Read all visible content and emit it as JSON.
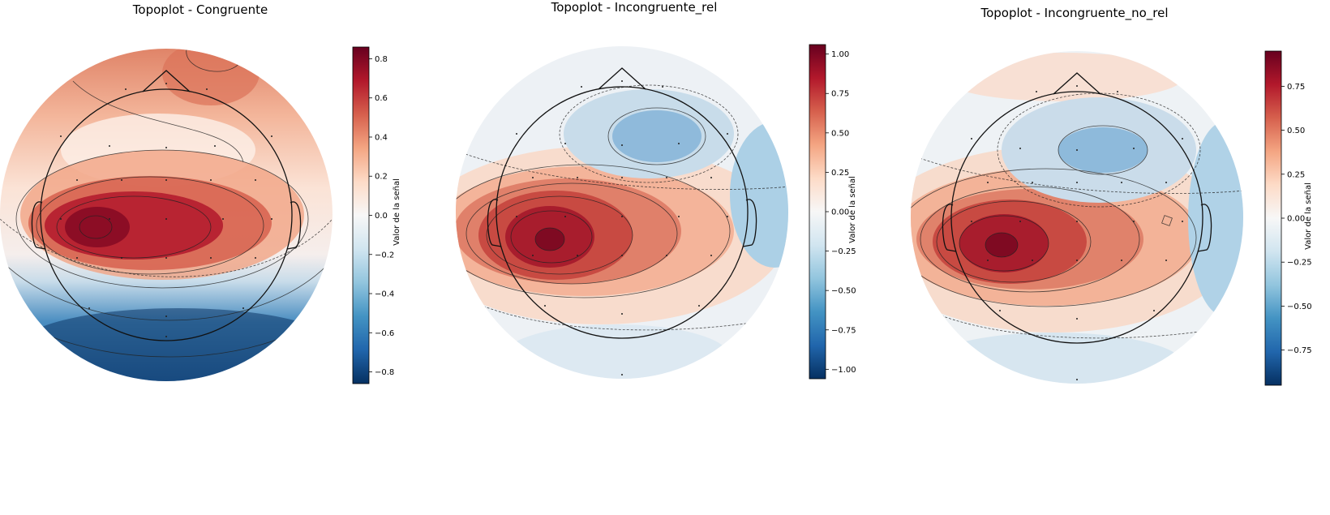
{
  "chart_data": [
    {
      "type": "heatmap",
      "title": "Topoplot - Congruente",
      "colorbar_label": "Valor de la señal",
      "colormap": "RdBu_r",
      "vlim": [
        -0.86,
        0.86
      ],
      "colorbar_ticks": [
        {
          "value": 0.8,
          "label": "0.8"
        },
        {
          "value": 0.6,
          "label": "0.6"
        },
        {
          "value": 0.4,
          "label": "0.4"
        },
        {
          "value": 0.2,
          "label": "0.2"
        },
        {
          "value": 0.0,
          "label": "0.0"
        },
        {
          "value": -0.2,
          "label": "−0.2"
        },
        {
          "value": -0.4,
          "label": "−0.4"
        },
        {
          "value": -0.6,
          "label": "−0.6"
        },
        {
          "value": -0.8,
          "label": "−0.8"
        }
      ],
      "min": -0.86,
      "max": 0.86
    },
    {
      "type": "heatmap",
      "title": "Topoplot - Incongruente_rel",
      "colorbar_label": "Valor de la señal",
      "colormap": "RdBu_r",
      "vlim": [
        -1.06,
        1.06
      ],
      "colorbar_ticks": [
        {
          "value": 1.0,
          "label": "1.00"
        },
        {
          "value": 0.75,
          "label": "0.75"
        },
        {
          "value": 0.5,
          "label": "0.50"
        },
        {
          "value": 0.25,
          "label": "0.25"
        },
        {
          "value": 0.0,
          "label": "0.00"
        },
        {
          "value": -0.25,
          "label": "−0.25"
        },
        {
          "value": -0.5,
          "label": "−0.50"
        },
        {
          "value": -0.75,
          "label": "−0.75"
        },
        {
          "value": -1.0,
          "label": "−1.00"
        }
      ],
      "min": -0.45,
      "max": 1.06
    },
    {
      "type": "heatmap",
      "title": "Topoplot - Incongruente_no_rel",
      "colorbar_label": "Valor de la señal",
      "colormap": "RdBu_r",
      "vlim": [
        -0.95,
        0.95
      ],
      "colorbar_ticks": [
        {
          "value": 0.75,
          "label": "0.75"
        },
        {
          "value": 0.5,
          "label": "0.50"
        },
        {
          "value": 0.25,
          "label": "0.25"
        },
        {
          "value": 0.0,
          "label": "0.00"
        },
        {
          "value": -0.25,
          "label": "−0.25"
        },
        {
          "value": -0.5,
          "label": "−0.50"
        },
        {
          "value": -0.75,
          "label": "−0.75"
        }
      ],
      "min": -0.5,
      "max": 0.95
    }
  ]
}
